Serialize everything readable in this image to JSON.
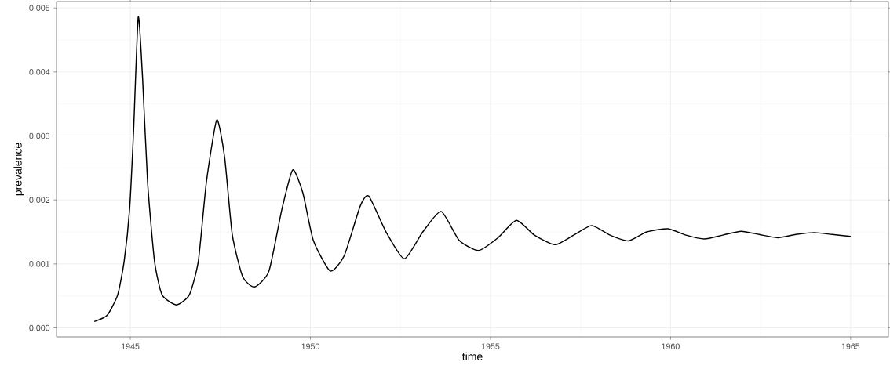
{
  "chart_data": {
    "type": "line",
    "xlabel": "time",
    "ylabel": "prevalence",
    "xlim": [
      1942.95,
      1966.05
    ],
    "ylim": [
      -0.00014,
      0.0051
    ],
    "xticks": [
      1945,
      1950,
      1955,
      1960,
      1965
    ],
    "yticks": [
      {
        "value": 0,
        "label": "0.000"
      },
      {
        "value": 0.001,
        "label": "0.001"
      },
      {
        "value": 0.002,
        "label": "0.002"
      },
      {
        "value": 0.003,
        "label": "0.003"
      },
      {
        "value": 0.004,
        "label": "0.004"
      },
      {
        "value": 0.005,
        "label": "0.005"
      }
    ],
    "grid": true,
    "x": [
      1944.0,
      1944.36,
      1944.65,
      1944.83,
      1944.98,
      1945.09,
      1945.22,
      1945.34,
      1945.48,
      1945.67,
      1945.88,
      1946.28,
      1946.64,
      1946.89,
      1947.11,
      1947.4,
      1947.62,
      1947.83,
      1948.12,
      1948.45,
      1948.85,
      1949.21,
      1949.51,
      1949.79,
      1950.08,
      1950.55,
      1950.94,
      1951.38,
      1951.62,
      1952.1,
      1952.61,
      1953.12,
      1953.63,
      1954.13,
      1954.67,
      1955.21,
      1955.72,
      1956.22,
      1956.79,
      1957.31,
      1957.81,
      1958.32,
      1958.83,
      1959.34,
      1959.93,
      1960.43,
      1960.94,
      1961.45,
      1961.96,
      1962.46,
      1962.97,
      1963.48,
      1963.99,
      1964.49,
      1965.0
    ],
    "values": [
      0.0001,
      0.0002,
      0.00052,
      0.00105,
      0.00186,
      0.00308,
      0.00486,
      0.0039,
      0.00227,
      0.00105,
      0.00052,
      0.00036,
      0.00052,
      0.00105,
      0.00227,
      0.00325,
      0.00266,
      0.00146,
      0.0008,
      0.00064,
      0.00089,
      0.00186,
      0.00247,
      0.00211,
      0.00137,
      0.00089,
      0.00113,
      0.0019,
      0.00206,
      0.0015,
      0.00108,
      0.0015,
      0.00182,
      0.00137,
      0.00121,
      0.00141,
      0.00168,
      0.00145,
      0.0013,
      0.00145,
      0.0016,
      0.00145,
      0.00136,
      0.0015,
      0.00155,
      0.00145,
      0.00139,
      0.00145,
      0.00151,
      0.00146,
      0.00141,
      0.00146,
      0.00149,
      0.00146,
      0.00143
    ],
    "color": "#000000"
  }
}
